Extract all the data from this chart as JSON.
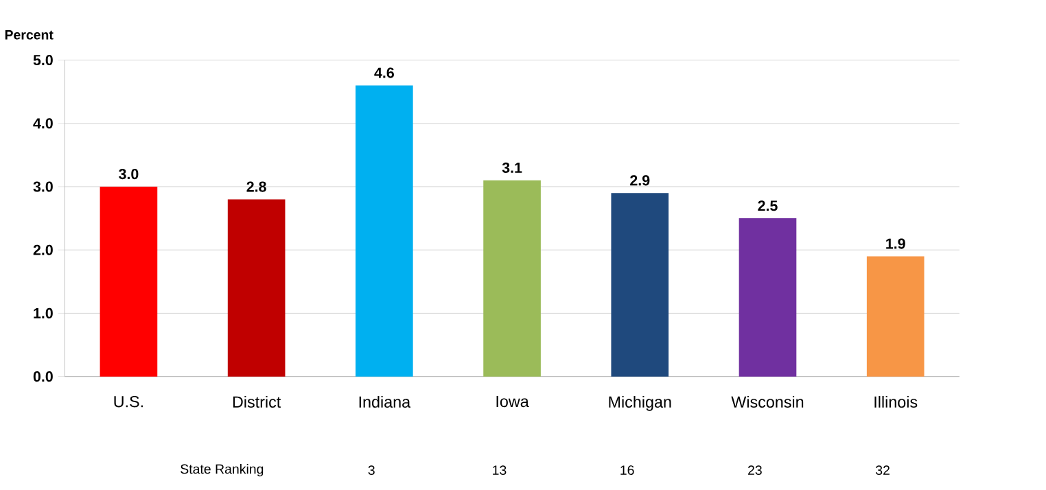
{
  "chart_data": {
    "type": "bar",
    "ylabel": "Percent",
    "categories": [
      "U.S.",
      "District",
      "Indiana",
      "Iowa",
      "Michigan",
      "Wisconsin",
      "Illinois"
    ],
    "values": [
      3.0,
      2.8,
      4.6,
      3.1,
      2.9,
      2.5,
      1.9
    ],
    "colors": [
      "#ff0000",
      "#c00000",
      "#00b0f0",
      "#9bbb59",
      "#1f497d",
      "#7030a0",
      "#f79646"
    ],
    "value_labels": [
      "3.0",
      "2.8",
      "4.6",
      "3.1",
      "2.9",
      "2.5",
      "1.9"
    ],
    "ylim": [
      0,
      5
    ],
    "yticks": [
      {
        "value": 0,
        "label": "0.0"
      },
      {
        "value": 1,
        "label": "1.0"
      },
      {
        "value": 2,
        "label": "2.0"
      },
      {
        "value": 3,
        "label": "3.0"
      },
      {
        "value": 4,
        "label": "4.0"
      },
      {
        "value": 5,
        "label": "5.0"
      }
    ],
    "grid": "y",
    "annotations": [
      "State Ranking",
      "3",
      "13",
      "16",
      "23",
      "32"
    ]
  }
}
